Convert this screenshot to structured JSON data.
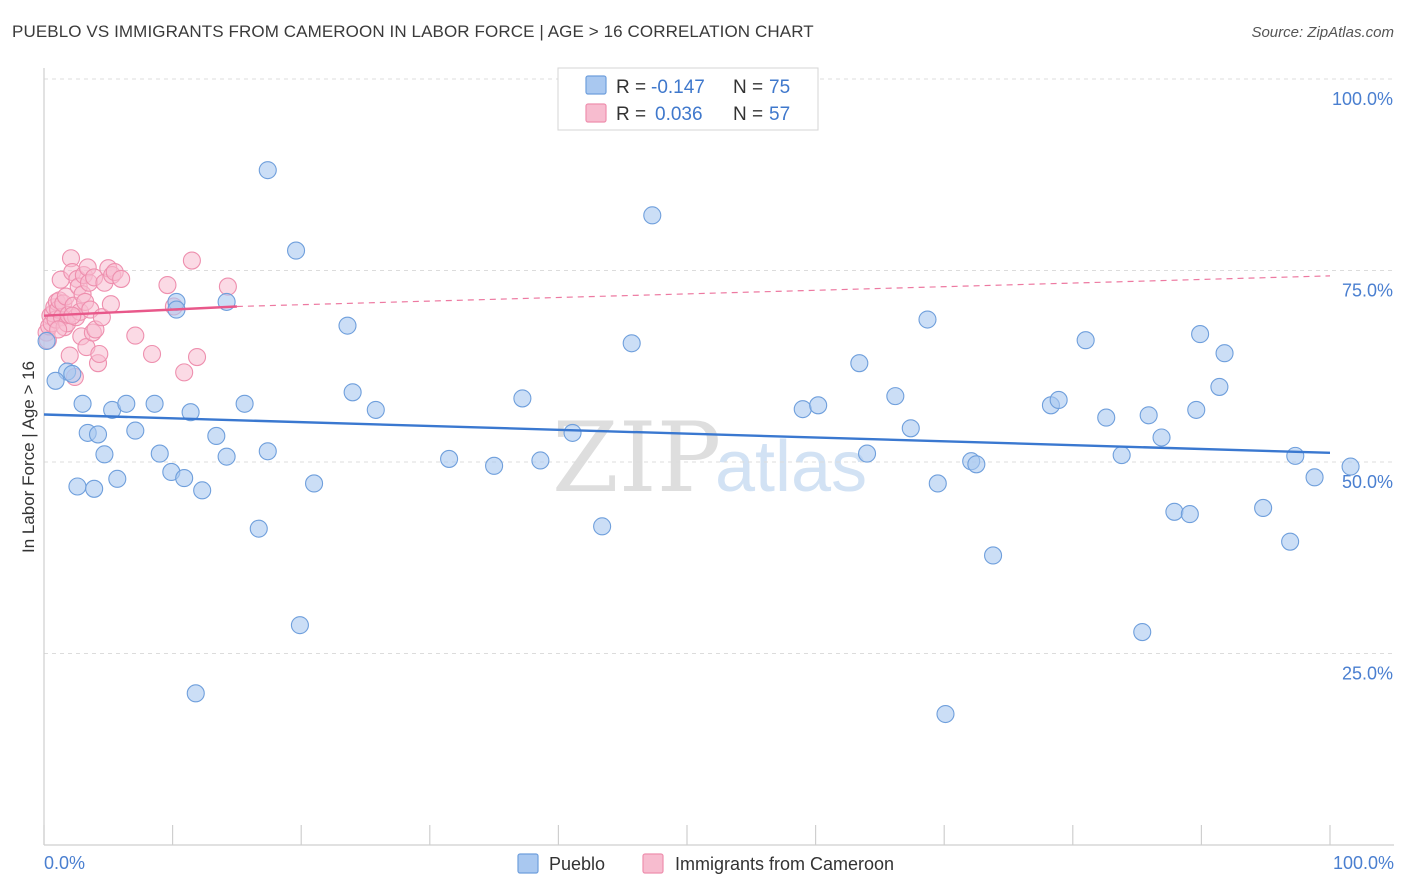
{
  "title": "PUEBLO VS IMMIGRANTS FROM CAMEROON IN LABOR FORCE | AGE > 16 CORRELATION CHART",
  "source": "Source: ZipAtlas.com",
  "watermark": {
    "zip": "ZIP",
    "atlas": "atlas"
  },
  "colors": {
    "pueblo_fill": "#a9c8f0",
    "pueblo_stroke": "#6f9fdc",
    "pueblo_line": "#3a78d0",
    "cameroon_fill": "#f7bccf",
    "cameroon_stroke": "#ee8fae",
    "cameroon_line": "#e8588a",
    "tick_text": "#4a7fd0",
    "grid": "#dcdcdc"
  },
  "legend": {
    "rows": [
      {
        "r_label": "R =",
        "r_value": "-0.147",
        "n_label": "N =",
        "n_value": "75"
      },
      {
        "r_label": "R =",
        "r_value": "0.036",
        "n_label": "N =",
        "n_value": "57"
      }
    ]
  },
  "bottom_legend": [
    "Pueblo",
    "Immigrants from Cameroon"
  ],
  "chart_data": {
    "type": "scatter",
    "title": "PUEBLO VS IMMIGRANTS FROM CAMEROON IN LABOR FORCE | AGE > 16 CORRELATION CHART",
    "xlabel": "",
    "ylabel": "In Labor Force | Age > 16",
    "xlim": [
      0,
      100
    ],
    "ylim": [
      0,
      100
    ],
    "x_tick_labels": [
      "0.0%",
      "100.0%"
    ],
    "y_ticks": [
      25,
      50,
      75,
      100
    ],
    "y_tick_labels": [
      "25.0%",
      "50.0%",
      "75.0%",
      "100.0%"
    ],
    "grid": true,
    "legend_position": "top-center",
    "series": [
      {
        "name": "Pueblo",
        "trend": {
          "x": [
            0,
            100
          ],
          "y": [
            56.2,
            51.2
          ]
        },
        "points": [
          [
            0.2,
            65.8
          ],
          [
            1.8,
            61.8
          ],
          [
            2.2,
            61.5
          ],
          [
            2.6,
            46.8
          ],
          [
            3.0,
            57.6
          ],
          [
            3.4,
            53.8
          ],
          [
            3.9,
            46.5
          ],
          [
            4.2,
            53.6
          ],
          [
            4.7,
            51.0
          ],
          [
            5.3,
            56.8
          ],
          [
            5.7,
            47.8
          ],
          [
            6.4,
            57.6
          ],
          [
            7.1,
            54.1
          ],
          [
            8.6,
            57.6
          ],
          [
            9.0,
            51.1
          ],
          [
            9.9,
            48.7
          ],
          [
            10.3,
            70.9
          ],
          [
            10.3,
            69.9
          ],
          [
            10.9,
            47.9
          ],
          [
            11.4,
            56.5
          ],
          [
            11.8,
            19.8
          ],
          [
            12.3,
            46.3
          ],
          [
            13.4,
            53.4
          ],
          [
            14.2,
            70.9
          ],
          [
            14.2,
            50.7
          ],
          [
            15.6,
            57.6
          ],
          [
            16.7,
            41.3
          ],
          [
            17.4,
            51.4
          ],
          [
            17.4,
            88.1
          ],
          [
            19.6,
            77.6
          ],
          [
            19.9,
            28.7
          ],
          [
            21.0,
            47.2
          ],
          [
            23.6,
            67.8
          ],
          [
            24.0,
            59.1
          ],
          [
            25.8,
            56.8
          ],
          [
            31.5,
            50.4
          ],
          [
            35.0,
            49.5
          ],
          [
            37.2,
            58.3
          ],
          [
            38.6,
            50.2
          ],
          [
            41.1,
            53.8
          ],
          [
            43.4,
            41.6
          ],
          [
            45.7,
            65.5
          ],
          [
            47.3,
            82.2
          ],
          [
            59.0,
            56.9
          ],
          [
            60.2,
            57.4
          ],
          [
            63.4,
            62.9
          ],
          [
            64.0,
            51.1
          ],
          [
            66.2,
            58.6
          ],
          [
            67.4,
            54.4
          ],
          [
            68.7,
            68.6
          ],
          [
            69.5,
            47.2
          ],
          [
            70.1,
            17.1
          ],
          [
            72.1,
            50.1
          ],
          [
            72.5,
            49.7
          ],
          [
            73.8,
            37.8
          ],
          [
            78.3,
            57.4
          ],
          [
            78.9,
            58.1
          ],
          [
            81.0,
            65.9
          ],
          [
            82.6,
            55.8
          ],
          [
            83.8,
            50.9
          ],
          [
            85.4,
            27.8
          ],
          [
            85.9,
            56.1
          ],
          [
            86.9,
            53.2
          ],
          [
            87.9,
            43.5
          ],
          [
            89.1,
            43.2
          ],
          [
            89.6,
            56.8
          ],
          [
            89.9,
            66.7
          ],
          [
            91.4,
            59.8
          ],
          [
            91.8,
            64.2
          ],
          [
            94.8,
            44.0
          ],
          [
            96.9,
            39.6
          ],
          [
            97.3,
            50.8
          ],
          [
            98.8,
            48.0
          ],
          [
            101.6,
            49.4
          ],
          [
            0.9,
            60.6
          ]
        ]
      },
      {
        "name": "Immigrants from Cameroon",
        "trend": {
          "x": [
            0,
            15
          ],
          "y": [
            69.1,
            70.3
          ],
          "dashed_extension": {
            "x": [
              15,
              100
            ],
            "y": [
              70.3,
              74.3
            ]
          }
        },
        "points": [
          [
            0.2,
            66.9
          ],
          [
            0.3,
            65.9
          ],
          [
            0.4,
            67.7
          ],
          [
            0.5,
            69.1
          ],
          [
            0.6,
            68.1
          ],
          [
            0.7,
            69.4
          ],
          [
            0.8,
            70.2
          ],
          [
            0.9,
            68.6
          ],
          [
            1.0,
            70.9
          ],
          [
            1.1,
            69.9
          ],
          [
            1.2,
            71.1
          ],
          [
            1.3,
            73.8
          ],
          [
            1.4,
            68.9
          ],
          [
            1.5,
            70.7
          ],
          [
            1.6,
            67.6
          ],
          [
            1.7,
            71.6
          ],
          [
            1.8,
            68.1
          ],
          [
            1.9,
            69.2
          ],
          [
            2.0,
            63.9
          ],
          [
            2.1,
            76.6
          ],
          [
            2.2,
            74.8
          ],
          [
            2.3,
            70.4
          ],
          [
            2.4,
            61.1
          ],
          [
            2.5,
            68.9
          ],
          [
            2.6,
            73.9
          ],
          [
            2.7,
            72.9
          ],
          [
            2.8,
            69.6
          ],
          [
            2.9,
            66.4
          ],
          [
            3.0,
            71.9
          ],
          [
            3.1,
            74.4
          ],
          [
            3.2,
            70.9
          ],
          [
            3.3,
            65.0
          ],
          [
            3.4,
            75.4
          ],
          [
            3.5,
            73.4
          ],
          [
            3.6,
            69.9
          ],
          [
            3.8,
            66.9
          ],
          [
            3.9,
            74.1
          ],
          [
            4.0,
            67.3
          ],
          [
            4.2,
            62.9
          ],
          [
            4.3,
            64.1
          ],
          [
            4.5,
            68.9
          ],
          [
            4.7,
            73.4
          ],
          [
            5.0,
            75.3
          ],
          [
            5.2,
            70.6
          ],
          [
            5.3,
            74.4
          ],
          [
            5.5,
            74.8
          ],
          [
            6.0,
            73.9
          ],
          [
            7.1,
            66.5
          ],
          [
            8.4,
            64.1
          ],
          [
            9.6,
            73.1
          ],
          [
            10.1,
            70.3
          ],
          [
            10.9,
            61.7
          ],
          [
            11.5,
            76.3
          ],
          [
            11.9,
            63.7
          ],
          [
            14.3,
            72.9
          ],
          [
            1.1,
            67.3
          ],
          [
            2.2,
            69.1
          ]
        ]
      }
    ]
  }
}
